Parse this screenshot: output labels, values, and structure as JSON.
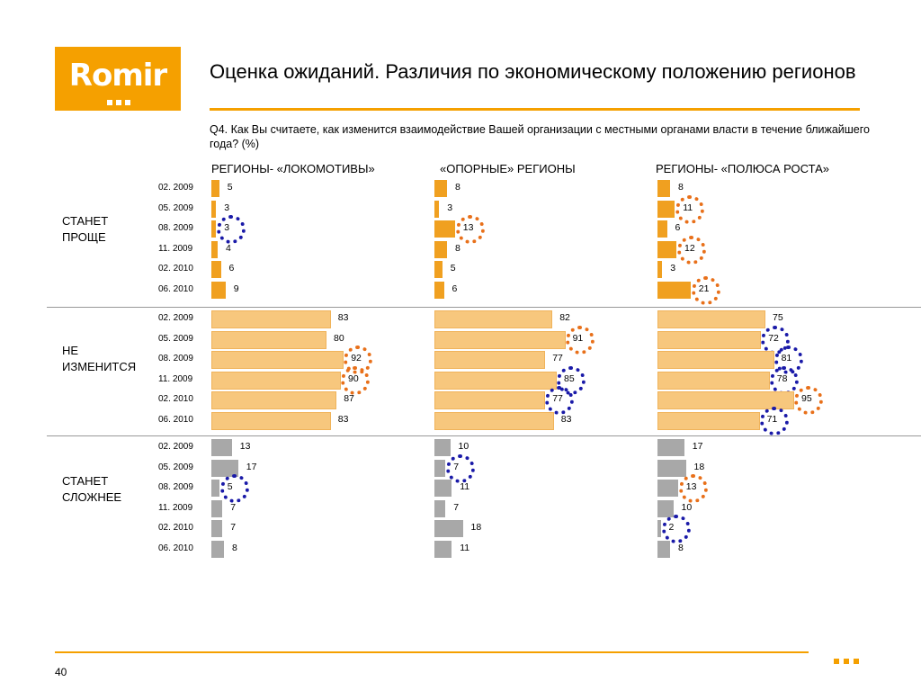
{
  "logo": {
    "text": "Romir"
  },
  "header": {
    "title": "Оценка ожиданий. Различия по экономическому положению регионов"
  },
  "question": "Q4. Как Вы считаете, как изменится взаимодействие Вашей организации с местными органами власти в течение ближайшего года? (%)",
  "footer": {
    "page": "40"
  },
  "colors": {
    "accent": "#f5a000",
    "simple": "#f0a020",
    "nochange": "#f7c77d",
    "harder": "#a8a8a8",
    "circle_orange": "#e8701a",
    "circle_blue": "#1a1aa8"
  },
  "chart_data": {
    "type": "bar",
    "orientation": "horizontal",
    "categories": [
      "02. 2009",
      "05. 2009",
      "08. 2009",
      "11. 2009",
      "02. 2010",
      "06. 2010"
    ],
    "columns": [
      "РЕГИОНЫ- «ЛОКОМОТИВЫ»",
      "«ОПОРНЫЕ» РЕГИОНЫ",
      "РЕГИОНЫ- «ПОЛЮСА РОСТА»"
    ],
    "groups": [
      {
        "label": "СТАНЕТ ПРОЩЕ",
        "style": "simple",
        "series": [
          {
            "column": "РЕГИОНЫ- «ЛОКОМОТИВЫ»",
            "values": [
              5,
              3,
              3,
              4,
              6,
              9
            ],
            "circles": [
              null,
              null,
              "blue",
              null,
              null,
              null
            ]
          },
          {
            "column": "«ОПОРНЫЕ» РЕГИОНЫ",
            "values": [
              8,
              3,
              13,
              8,
              5,
              6
            ],
            "circles": [
              null,
              null,
              "orange",
              null,
              null,
              null
            ]
          },
          {
            "column": "РЕГИОНЫ- «ПОЛЮСА РОСТА»",
            "values": [
              8,
              11,
              6,
              12,
              3,
              21
            ],
            "circles": [
              null,
              "orange",
              null,
              "orange",
              null,
              "orange"
            ]
          }
        ]
      },
      {
        "label": "НЕ ИЗМЕНИТСЯ",
        "style": "nochange",
        "series": [
          {
            "column": "РЕГИОНЫ- «ЛОКОМОТИВЫ»",
            "values": [
              83,
              80,
              92,
              90,
              87,
              83
            ],
            "circles": [
              null,
              null,
              "orange",
              "orange",
              null,
              null
            ]
          },
          {
            "column": "«ОПОРНЫЕ» РЕГИОНЫ",
            "values": [
              82,
              91,
              77,
              85,
              77,
              83
            ],
            "circles": [
              null,
              "orange",
              null,
              "blue",
              "blue",
              null
            ]
          },
          {
            "column": "РЕГИОНЫ- «ПОЛЮСА РОСТА»",
            "values": [
              75,
              72,
              81,
              78,
              95,
              71
            ],
            "circles": [
              null,
              "blue",
              "blue",
              "blue",
              "orange",
              "blue"
            ]
          }
        ]
      },
      {
        "label": "СТАНЕТ СЛОЖНЕЕ",
        "style": "harder",
        "series": [
          {
            "column": "РЕГИОНЫ- «ЛОКОМОТИВЫ»",
            "values": [
              13,
              17,
              5,
              7,
              7,
              8
            ],
            "circles": [
              null,
              null,
              "blue",
              null,
              null,
              null
            ]
          },
          {
            "column": "«ОПОРНЫЕ» РЕГИОНЫ",
            "values": [
              10,
              7,
              11,
              7,
              18,
              11
            ],
            "circles": [
              null,
              "blue",
              null,
              null,
              null,
              null
            ]
          },
          {
            "column": "РЕГИОНЫ- «ПОЛЮСА РОСТА»",
            "values": [
              17,
              18,
              13,
              10,
              2,
              8
            ],
            "circles": [
              null,
              null,
              "orange",
              null,
              "blue",
              null
            ]
          }
        ]
      }
    ]
  }
}
